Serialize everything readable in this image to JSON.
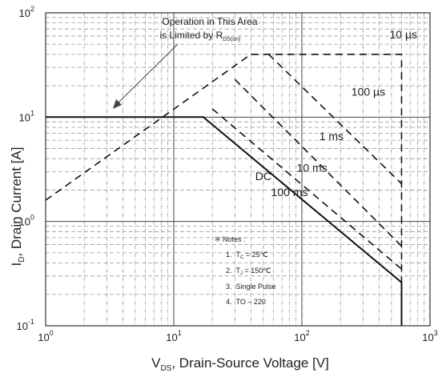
{
  "chart_data": {
    "type": "line",
    "x_scale": "log",
    "y_scale": "log",
    "xlim": [
      1,
      1000
    ],
    "ylim": [
      0.1,
      100
    ],
    "grid": true,
    "x_ticks": [
      {
        "base": "10",
        "exp": "0"
      },
      {
        "base": "10",
        "exp": "1"
      },
      {
        "base": "10",
        "exp": "2"
      },
      {
        "base": "10",
        "exp": "3"
      }
    ],
    "y_ticks": [
      {
        "base": "10",
        "exp": "-1"
      },
      {
        "base": "10",
        "exp": "0"
      },
      {
        "base": "10",
        "exp": "1"
      },
      {
        "base": "10",
        "exp": "2"
      }
    ],
    "xlabel": {
      "main": "V",
      "sub": "DS",
      "rest": ", Drain-Source Voltage [V]"
    },
    "ylabel": {
      "main": "I",
      "sub": "D",
      "rest": ", Drain Current [A]"
    },
    "series": [
      {
        "name": "10 µs",
        "style": "dashed",
        "points": [
          [
            1,
            1.6
          ],
          [
            40,
            40
          ],
          [
            600,
            40
          ],
          [
            600,
            0.1
          ]
        ]
      },
      {
        "name": "100 µs",
        "style": "dashed",
        "points": [
          [
            600,
            7.2
          ]
        ]
      },
      {
        "name": "1 ms",
        "style": "dashed",
        "points": [
          [
            55,
            40
          ],
          [
            600,
            2.3
          ]
        ]
      },
      {
        "name": "10 ms",
        "style": "dashed",
        "points": [
          [
            30,
            23
          ],
          [
            600,
            0.58
          ]
        ]
      },
      {
        "name": "100 ms",
        "style": "dashed",
        "points": [
          [
            20,
            12
          ],
          [
            600,
            0.35
          ]
        ]
      },
      {
        "name": "DC",
        "style": "solid",
        "points": [
          [
            1,
            10
          ],
          [
            17,
            10
          ],
          [
            600,
            0.26
          ],
          [
            600,
            0.1
          ]
        ]
      }
    ],
    "labels": [
      {
        "text": "10 µs",
        "x": 620,
        "y": 57
      },
      {
        "text": "100 µs",
        "x": 330,
        "y": 16
      },
      {
        "text": "1 ms",
        "x": 170,
        "y": 6.0
      },
      {
        "text": "10 ms",
        "x": 120,
        "y": 3.0
      },
      {
        "text": "100 ms",
        "x": 80,
        "y": 1.75
      },
      {
        "text": "DC",
        "x": 50,
        "y": 2.5
      }
    ],
    "annotation": {
      "line1": "Operation in This Area",
      "line2_main": "is Limited by R",
      "line2_sub": "DS(on)"
    },
    "notes": {
      "title": "※ Notes :",
      "items": [
        {
          "num": "1.",
          "a": "T",
          "asub": "C",
          "b": " = 25℃"
        },
        {
          "num": "2.",
          "a": "T",
          "asub": "J",
          "b": " = 150℃"
        },
        {
          "num": "3.",
          "a": "Single Pulse",
          "asub": "",
          "b": ""
        },
        {
          "num": "4.",
          "a": "TO – 220",
          "asub": "",
          "b": ""
        }
      ]
    }
  }
}
